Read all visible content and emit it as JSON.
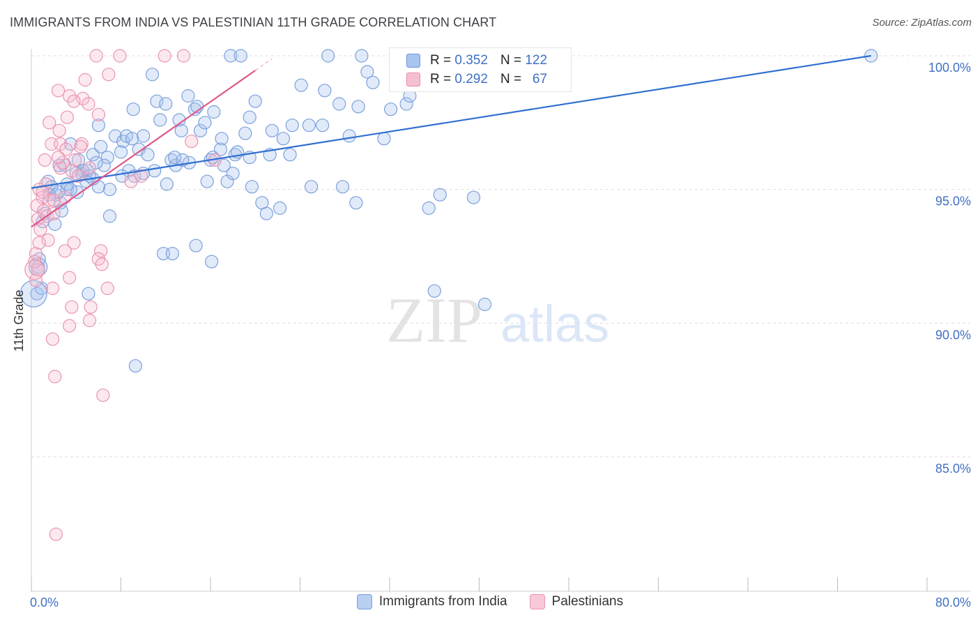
{
  "title": "IMMIGRANTS FROM INDIA VS PALESTINIAN 11TH GRADE CORRELATION CHART",
  "source": "Source: ZipAtlas.com",
  "watermark": {
    "zip": "ZIP",
    "atlas": "atlas"
  },
  "legend": {
    "rows": [
      {
        "r_label": "R = ",
        "r_value": "0.352",
        "n_label": "N = ",
        "n_value": "122",
        "color": "#a9c4ee",
        "border": "#6f97d8"
      },
      {
        "r_label": "R = ",
        "r_value": "0.292",
        "n_label": "N = ",
        "n_value": "67",
        "color": "#f6bfd1",
        "border": "#e88aa9"
      }
    ]
  },
  "bottom_legend": [
    {
      "label": "Immigrants from India",
      "color": "#b8cff2",
      "border": "#7aa0dc"
    },
    {
      "label": "Palestinians",
      "color": "#f8c9d8",
      "border": "#e993b0"
    }
  ],
  "chart_data": {
    "type": "scatter",
    "title": "IMMIGRANTS FROM INDIA VS PALESTINIAN 11TH GRADE CORRELATION CHART",
    "xlabel": "",
    "ylabel": "11th Grade",
    "xlim": [
      0,
      80
    ],
    "ylim": [
      80.5,
      100.6
    ],
    "x_tick_labels": [
      "0.0%",
      "80.0%"
    ],
    "y_ticks": [
      85,
      90,
      95,
      100
    ],
    "y_tick_labels": [
      "85.0%",
      "90.0%",
      "95.0%",
      "100.0%"
    ],
    "grid": true,
    "series": [
      {
        "name": "Immigrants from India",
        "color": "#7aa0dc",
        "fill": "rgba(170,196,238,0.35)",
        "trend": {
          "x": [
            0,
            75.0
          ],
          "y": [
            95.05,
            100.0
          ],
          "color": "#2f6fd0"
        },
        "points": [
          [
            1.5,
            95.3
          ],
          [
            1.8,
            95.1
          ],
          [
            2.2,
            94.8
          ],
          [
            1.2,
            94.1
          ],
          [
            2.1,
            93.7
          ],
          [
            2.5,
            95.9
          ],
          [
            3.2,
            95.0
          ],
          [
            3.5,
            96.7
          ],
          [
            3.0,
            95.9
          ],
          [
            2.6,
            94.5
          ],
          [
            4.2,
            96.1
          ],
          [
            4.5,
            95.6
          ],
          [
            4.1,
            94.9
          ],
          [
            5.0,
            95.7
          ],
          [
            5.5,
            96.3
          ],
          [
            6.2,
            96.6
          ],
          [
            6.8,
            96.2
          ],
          [
            6.0,
            97.4
          ],
          [
            7.5,
            97.0
          ],
          [
            7.0,
            95.0
          ],
          [
            8.2,
            96.8
          ],
          [
            8.5,
            97.0
          ],
          [
            8.7,
            95.7
          ],
          [
            9.1,
            98.0
          ],
          [
            9.6,
            96.5
          ],
          [
            10.0,
            97.0
          ],
          [
            10.4,
            96.3
          ],
          [
            11.2,
            98.3
          ],
          [
            11.5,
            97.6
          ],
          [
            12.0,
            98.2
          ],
          [
            12.5,
            96.1
          ],
          [
            12.9,
            95.9
          ],
          [
            13.2,
            97.6
          ],
          [
            14.0,
            98.5
          ],
          [
            14.6,
            98.0
          ],
          [
            15.1,
            97.2
          ],
          [
            16.0,
            96.1
          ],
          [
            16.3,
            97.9
          ],
          [
            17.0,
            96.9
          ],
          [
            17.5,
            95.3
          ],
          [
            18.2,
            96.3
          ],
          [
            19.1,
            97.1
          ],
          [
            19.5,
            97.7
          ],
          [
            20.0,
            98.3
          ],
          [
            21.3,
            96.3
          ],
          [
            21.5,
            97.2
          ],
          [
            22.5,
            96.9
          ],
          [
            23.3,
            97.4
          ],
          [
            24.1,
            98.9
          ],
          [
            24.8,
            97.4
          ],
          [
            26.2,
            98.7
          ],
          [
            27.5,
            98.2
          ],
          [
            28.4,
            97.0
          ],
          [
            30.0,
            99.4
          ],
          [
            30.5,
            99.0
          ],
          [
            32.1,
            98.0
          ],
          [
            33.5,
            98.2
          ],
          [
            17.8,
            100.0
          ],
          [
            18.7,
            100.0
          ],
          [
            26.5,
            100.0
          ],
          [
            29.5,
            100.0
          ],
          [
            27.8,
            95.1
          ],
          [
            29.0,
            94.5
          ],
          [
            35.5,
            94.3
          ],
          [
            36.5,
            94.8
          ],
          [
            39.5,
            94.7
          ],
          [
            10.8,
            99.3
          ],
          [
            12.1,
            95.2
          ],
          [
            9.2,
            95.5
          ],
          [
            8.1,
            95.5
          ],
          [
            7.0,
            94.0
          ],
          [
            6.0,
            95.1
          ],
          [
            5.5,
            95.4
          ],
          [
            4.6,
            95.7
          ],
          [
            4.0,
            95.6
          ],
          [
            3.2,
            95.2
          ],
          [
            2.4,
            94.9
          ],
          [
            1.6,
            94.8
          ],
          [
            1.0,
            93.8
          ],
          [
            0.7,
            92.4
          ],
          [
            0.6,
            92.1
          ],
          [
            0.5,
            91.1
          ],
          [
            0.9,
            91.3
          ],
          [
            5.1,
            91.1
          ],
          [
            9.3,
            88.4
          ],
          [
            11.8,
            92.6
          ],
          [
            12.6,
            92.6
          ],
          [
            14.7,
            92.9
          ],
          [
            16.1,
            92.3
          ],
          [
            22.2,
            94.3
          ],
          [
            20.6,
            94.5
          ],
          [
            19.7,
            95.1
          ],
          [
            18.0,
            95.6
          ],
          [
            16.9,
            96.5
          ],
          [
            15.7,
            95.3
          ],
          [
            14.1,
            96.0
          ],
          [
            13.5,
            96.1
          ],
          [
            12.8,
            96.2
          ],
          [
            11.0,
            95.7
          ],
          [
            10.0,
            95.6
          ],
          [
            9.0,
            96.9
          ],
          [
            8.0,
            96.4
          ],
          [
            6.5,
            95.9
          ],
          [
            5.8,
            96.0
          ],
          [
            5.2,
            95.5
          ],
          [
            4.9,
            95.3
          ],
          [
            3.5,
            95.0
          ],
          [
            2.7,
            94.2
          ],
          [
            36.0,
            91.2
          ],
          [
            40.5,
            90.7
          ],
          [
            33.3,
            99.2
          ],
          [
            33.8,
            98.5
          ],
          [
            31.5,
            96.9
          ],
          [
            29.2,
            98.1
          ],
          [
            26.0,
            97.4
          ],
          [
            25.0,
            95.1
          ],
          [
            23.1,
            96.3
          ],
          [
            21.0,
            94.1
          ],
          [
            19.5,
            96.2
          ],
          [
            18.4,
            96.4
          ],
          [
            17.2,
            95.9
          ],
          [
            16.2,
            96.2
          ],
          [
            75.0,
            100.0
          ],
          [
            15.5,
            97.5
          ],
          [
            14.8,
            98.1
          ],
          [
            13.4,
            97.2
          ]
        ]
      },
      {
        "name": "Palestinians",
        "color": "#e993b0",
        "fill": "rgba(246,191,209,0.35)",
        "trend": {
          "x": [
            0,
            20.0
          ],
          "y": [
            93.6,
            99.45
          ],
          "color": "#e0578a"
        },
        "points": [
          [
            5.8,
            100.0
          ],
          [
            7.9,
            100.0
          ],
          [
            11.9,
            100.0
          ],
          [
            13.6,
            100.0
          ],
          [
            4.8,
            99.1
          ],
          [
            6.9,
            99.3
          ],
          [
            2.4,
            98.7
          ],
          [
            3.4,
            98.5
          ],
          [
            4.6,
            98.4
          ],
          [
            3.8,
            98.3
          ],
          [
            5.1,
            98.2
          ],
          [
            6.0,
            97.8
          ],
          [
            3.2,
            97.7
          ],
          [
            1.6,
            97.5
          ],
          [
            2.5,
            97.2
          ],
          [
            1.8,
            96.7
          ],
          [
            2.6,
            96.7
          ],
          [
            3.1,
            96.5
          ],
          [
            4.5,
            96.7
          ],
          [
            1.2,
            96.1
          ],
          [
            2.6,
            95.8
          ],
          [
            3.6,
            95.7
          ],
          [
            4.2,
            95.5
          ],
          [
            1.3,
            95.2
          ],
          [
            0.7,
            95.0
          ],
          [
            1.0,
            94.7
          ],
          [
            1.6,
            94.6
          ],
          [
            2.0,
            94.6
          ],
          [
            0.5,
            94.4
          ],
          [
            1.1,
            94.2
          ],
          [
            0.6,
            93.9
          ],
          [
            1.4,
            94.0
          ],
          [
            0.8,
            93.5
          ],
          [
            1.5,
            93.1
          ],
          [
            0.4,
            92.6
          ],
          [
            3.0,
            92.7
          ],
          [
            3.8,
            93.0
          ],
          [
            6.2,
            92.7
          ],
          [
            6.0,
            92.4
          ],
          [
            6.3,
            92.2
          ],
          [
            0.6,
            92.0
          ],
          [
            0.4,
            91.6
          ],
          [
            3.4,
            91.7
          ],
          [
            6.8,
            91.3
          ],
          [
            1.9,
            91.3
          ],
          [
            3.6,
            90.6
          ],
          [
            5.3,
            90.6
          ],
          [
            3.4,
            89.9
          ],
          [
            5.2,
            90.1
          ],
          [
            1.9,
            89.4
          ],
          [
            2.1,
            88.0
          ],
          [
            6.4,
            87.3
          ],
          [
            2.2,
            82.1
          ],
          [
            16.4,
            96.1
          ],
          [
            14.3,
            96.8
          ],
          [
            9.8,
            95.5
          ],
          [
            8.9,
            95.3
          ],
          [
            5.2,
            95.8
          ],
          [
            3.9,
            96.1
          ],
          [
            2.8,
            96.0
          ],
          [
            1.0,
            94.9
          ],
          [
            2.0,
            94.1
          ],
          [
            0.7,
            93.0
          ],
          [
            0.3,
            92.3
          ],
          [
            3.0,
            94.7
          ],
          [
            4.4,
            96.6
          ],
          [
            2.4,
            96.2
          ]
        ]
      }
    ]
  }
}
